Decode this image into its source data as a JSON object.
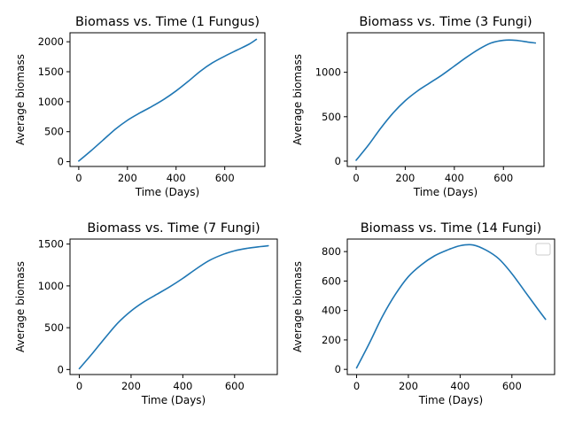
{
  "chart_data": [
    {
      "type": "line",
      "title": "Biomass vs. Time (1 Fungus)",
      "xlabel": "Time (Days)",
      "ylabel": "Average biomass",
      "xlim": [
        -36,
        765
      ],
      "ylim": [
        -80,
        2150
      ],
      "xticks": [
        0,
        200,
        400,
        600
      ],
      "yticks": [
        0,
        500,
        1000,
        1500,
        2000
      ],
      "grid": false,
      "color": "#1f77b4",
      "x": [
        0,
        50,
        100,
        150,
        200,
        250,
        300,
        350,
        400,
        450,
        500,
        550,
        600,
        650,
        700,
        730
      ],
      "y": [
        10,
        180,
        360,
        540,
        690,
        810,
        920,
        1040,
        1180,
        1340,
        1510,
        1650,
        1760,
        1860,
        1960,
        2040
      ]
    },
    {
      "type": "line",
      "title": "Biomass vs. Time (3 Fungi)",
      "xlabel": "Time (Days)",
      "ylabel": "Average biomass",
      "xlim": [
        -36,
        765
      ],
      "ylim": [
        -60,
        1445
      ],
      "xticks": [
        0,
        200,
        400,
        600
      ],
      "yticks": [
        0,
        500,
        1000
      ],
      "grid": false,
      "color": "#1f77b4",
      "x": [
        0,
        50,
        100,
        150,
        200,
        250,
        300,
        350,
        400,
        450,
        500,
        550,
        600,
        650,
        700,
        730
      ],
      "y": [
        10,
        180,
        370,
        540,
        680,
        790,
        880,
        970,
        1070,
        1170,
        1260,
        1330,
        1360,
        1360,
        1340,
        1330
      ]
    },
    {
      "type": "line",
      "title": "Biomass vs. Time (7 Fungi)",
      "xlabel": "Time (Days)",
      "ylabel": "Average biomass",
      "xlim": [
        -36,
        765
      ],
      "ylim": [
        -60,
        1560
      ],
      "xticks": [
        0,
        200,
        400,
        600
      ],
      "yticks": [
        0,
        500,
        1000,
        1500
      ],
      "grid": false,
      "color": "#1f77b4",
      "x": [
        0,
        50,
        100,
        150,
        200,
        250,
        300,
        350,
        400,
        450,
        500,
        550,
        600,
        650,
        700,
        730
      ],
      "y": [
        10,
        190,
        380,
        560,
        700,
        810,
        900,
        990,
        1090,
        1200,
        1300,
        1370,
        1420,
        1450,
        1470,
        1480
      ]
    },
    {
      "type": "line",
      "title": "Biomass vs. Time (14 Fungi)",
      "xlabel": "Time (Days)",
      "ylabel": "Average biomass",
      "xlim": [
        -36,
        765
      ],
      "ylim": [
        -35,
        885
      ],
      "xticks": [
        0,
        200,
        400,
        600
      ],
      "yticks": [
        0,
        200,
        400,
        600,
        800
      ],
      "grid": false,
      "color": "#1f77b4",
      "legend": "top-right, empty",
      "x": [
        0,
        50,
        100,
        150,
        200,
        250,
        300,
        350,
        400,
        450,
        500,
        550,
        600,
        650,
        700,
        730
      ],
      "y": [
        10,
        180,
        360,
        510,
        630,
        710,
        770,
        810,
        840,
        845,
        810,
        750,
        650,
        530,
        410,
        340
      ]
    }
  ]
}
